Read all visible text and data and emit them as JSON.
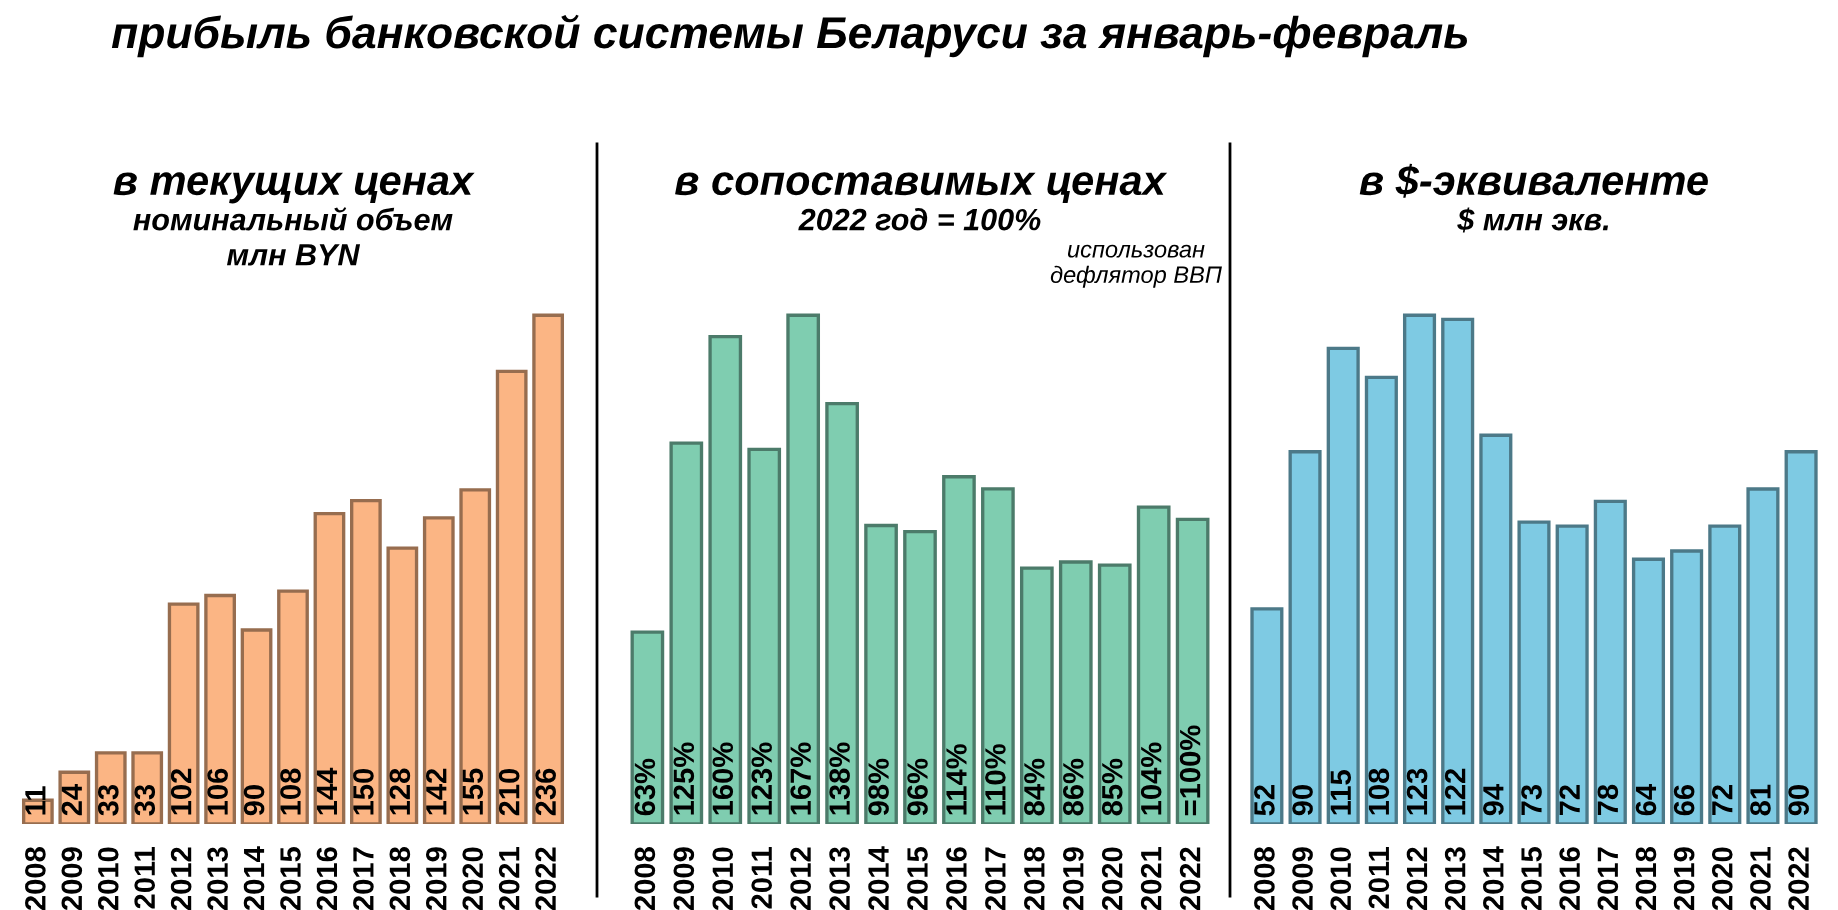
{
  "chart_data": [
    {
      "type": "bar",
      "title": "в текущих ценах",
      "subtitle": "номинальный объем\nмлн BYN",
      "annotations": [
        "прибыль банковской системы Беларуси за январь-февраль"
      ],
      "categories": [
        "2008",
        "2009",
        "2010",
        "2011",
        "2012",
        "2013",
        "2014",
        "2015",
        "2016",
        "2017",
        "2018",
        "2019",
        "2020",
        "2021",
        "2022"
      ],
      "series": [
        {
          "color": "#fbb584",
          "values": [
            11,
            24,
            33,
            33,
            102,
            106,
            90,
            108,
            144,
            150,
            128,
            142,
            155,
            210,
            236
          ]
        }
      ],
      "data_labels": true,
      "grid": false,
      "legend": false
    },
    {
      "type": "bar",
      "title": "в сопоставимых ценах",
      "subtitle": "2022 год = 100%",
      "annotations": [
        "использован\nдефлятор ВВП"
      ],
      "categories": [
        "2008",
        "2009",
        "2010",
        "2011",
        "2012",
        "2013",
        "2014",
        "2015",
        "2016",
        "2017",
        "2018",
        "2019",
        "2020",
        "2021",
        "2022"
      ],
      "series": [
        {
          "color": "#7fcdb0",
          "values": [
            63,
            125,
            160,
            123,
            167,
            138,
            98,
            96,
            114,
            110,
            84,
            86,
            85,
            104,
            100
          ],
          "value_labels": [
            "63%",
            "125%",
            "160%",
            "123%",
            "167%",
            "138%",
            "98%",
            "96%",
            "114%",
            "110%",
            "84%",
            "86%",
            "85%",
            "104%",
            "=100%"
          ]
        }
      ],
      "grid": false,
      "legend": false
    },
    {
      "type": "bar",
      "title": "в $-эквиваленте",
      "subtitle": "$ млн экв.",
      "categories": [
        "2008",
        "2009",
        "2010",
        "2011",
        "2012",
        "2013",
        "2014",
        "2015",
        "2016",
        "2017",
        "2018",
        "2019",
        "2020",
        "2021",
        "2022"
      ],
      "series": [
        {
          "color": "#7ecae3",
          "values": [
            52,
            90,
            115,
            108,
            123,
            122,
            94,
            73,
            72,
            78,
            64,
            66,
            72,
            81,
            90
          ]
        }
      ],
      "data_labels": true,
      "grid": false,
      "legend": false
    }
  ]
}
